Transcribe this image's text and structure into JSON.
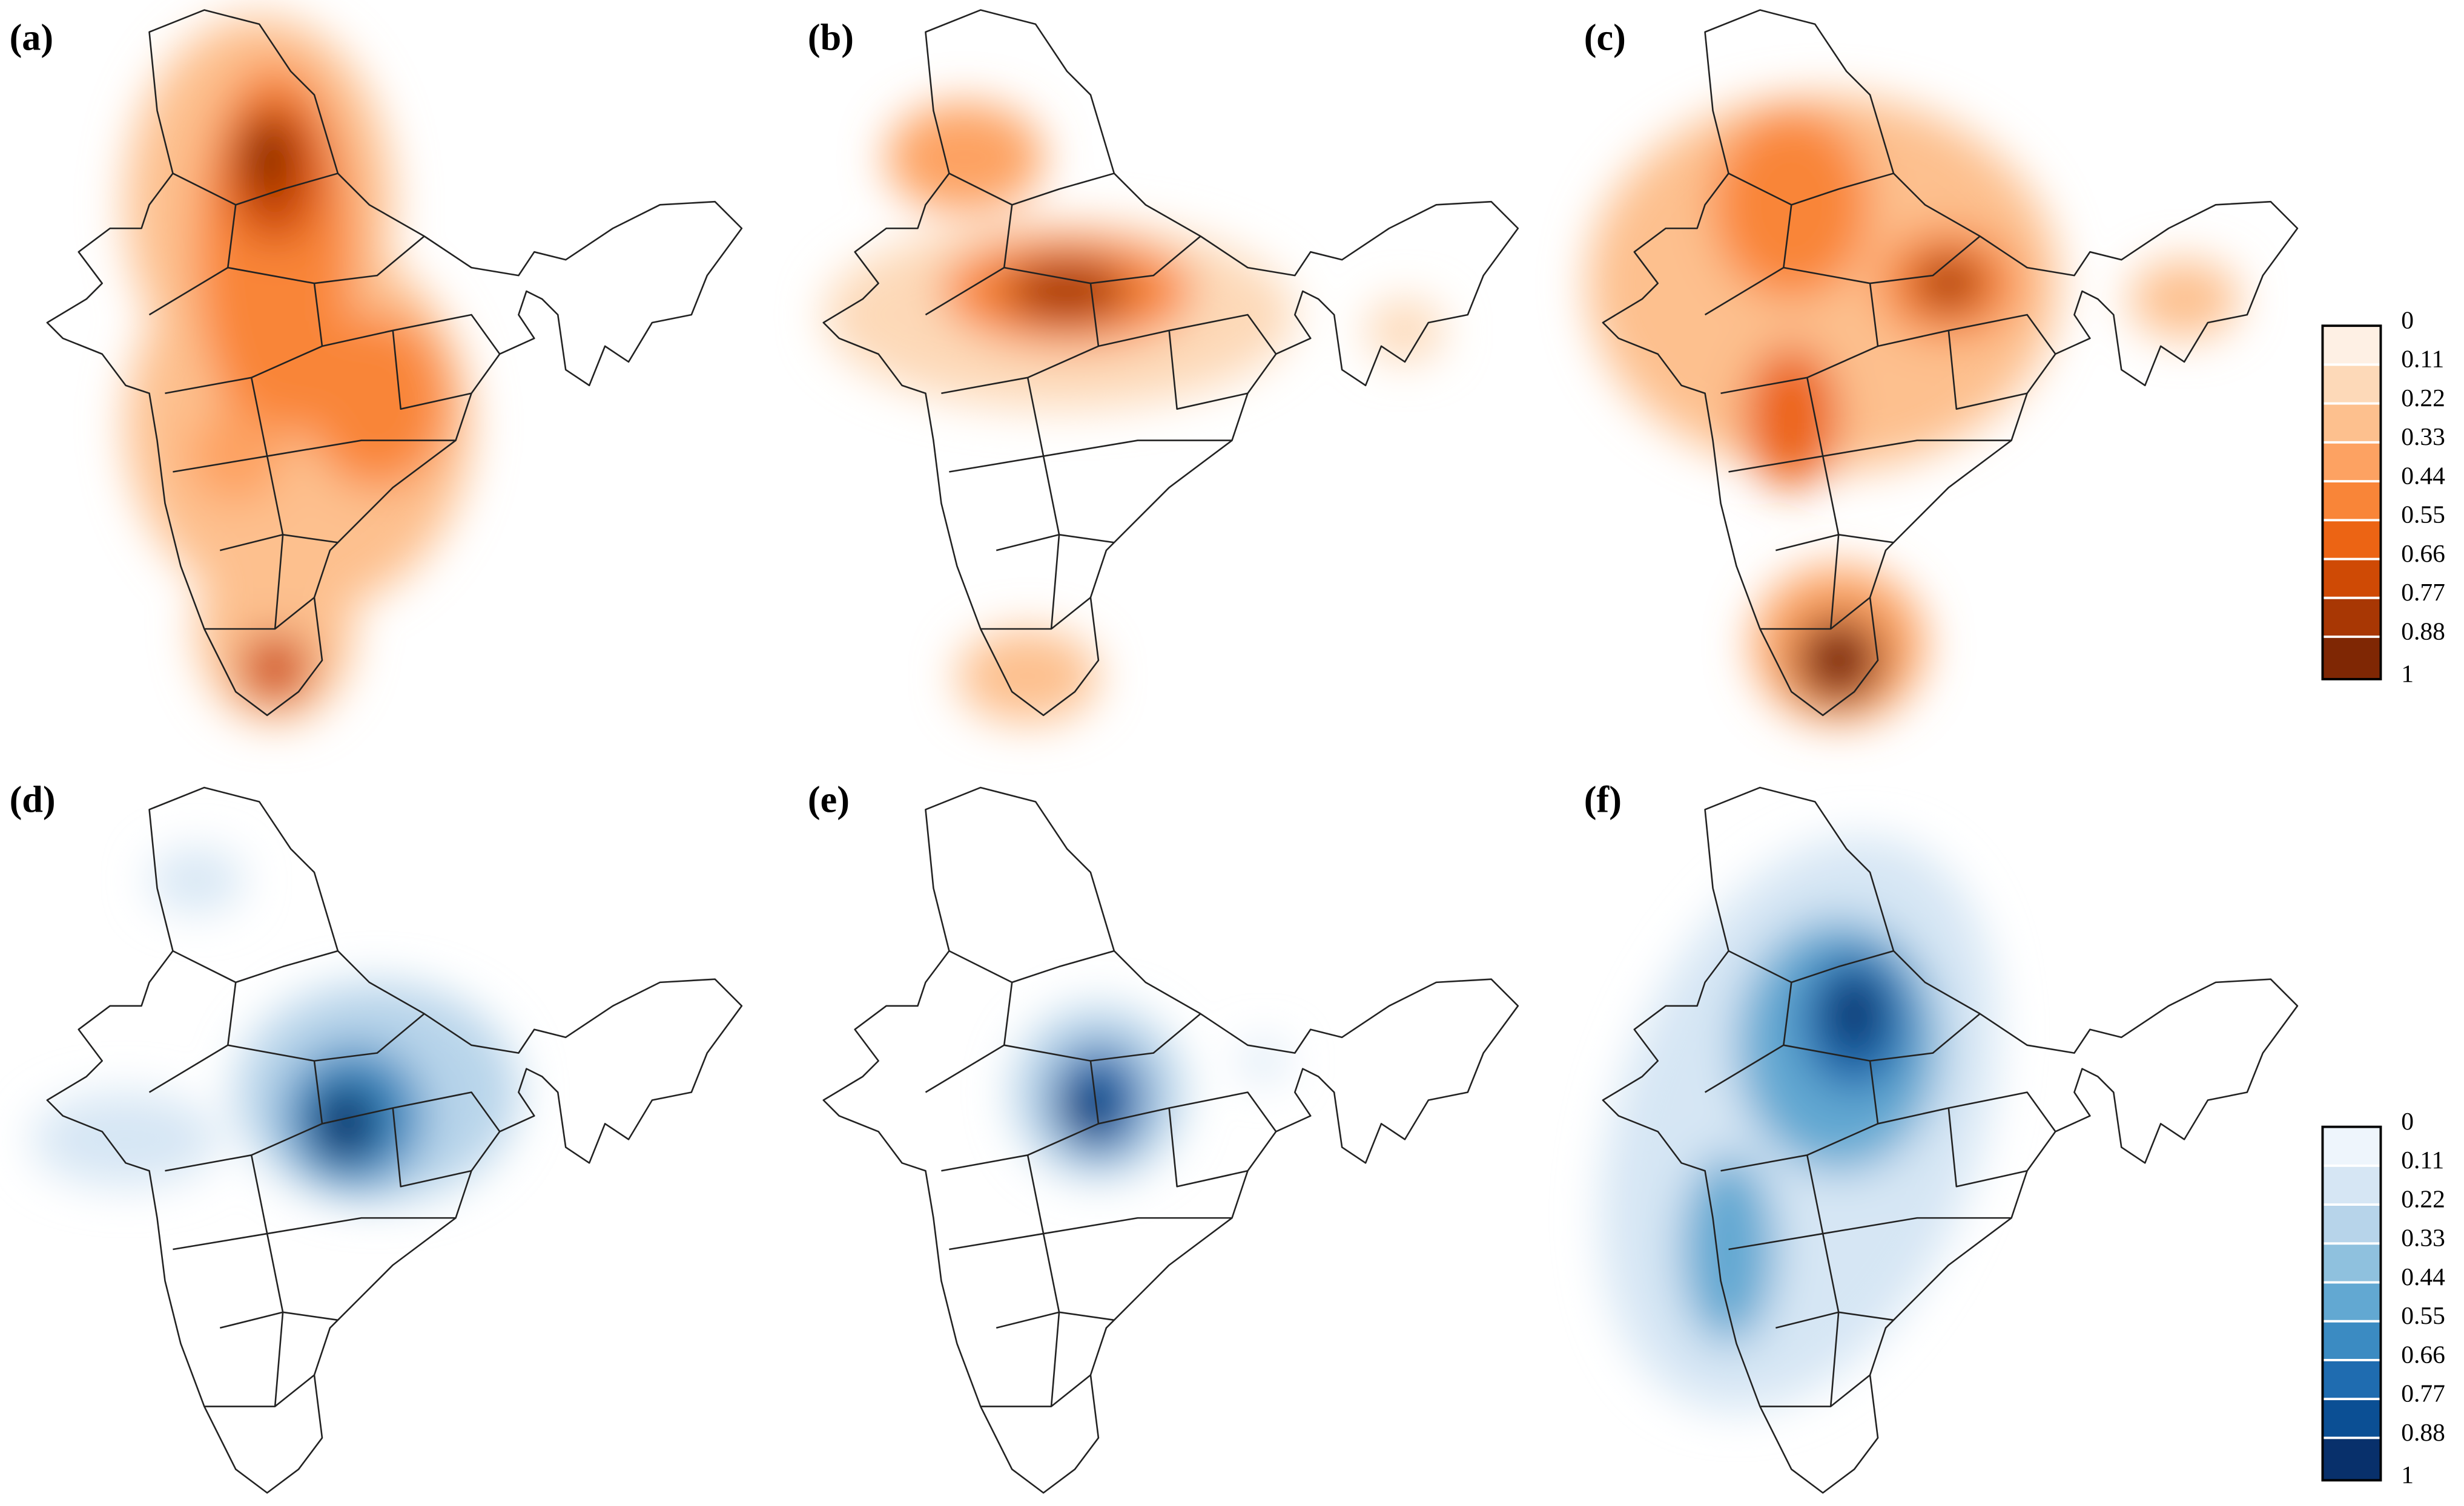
{
  "panels": [
    {
      "label": "(a)"
    },
    {
      "label": "(b)"
    },
    {
      "label": "(c)"
    },
    {
      "label": "(d)"
    },
    {
      "label": "(e)"
    },
    {
      "label": "(f)"
    }
  ],
  "colorbars": [
    {
      "ticks": [
        0,
        0.11,
        0.22,
        0.33,
        0.44,
        0.55,
        0.66,
        0.77,
        0.88,
        1
      ],
      "colors": [
        "#fef0e4",
        "#fdd9b8",
        "#fdc08e",
        "#fda262",
        "#f98538",
        "#ec6414",
        "#cf4a05",
        "#a83704",
        "#7f2704"
      ]
    },
    {
      "ticks": [
        0,
        0.11,
        0.22,
        0.33,
        0.44,
        0.55,
        0.66,
        0.77,
        0.88,
        1
      ],
      "colors": [
        "#eef5fc",
        "#d6e6f4",
        "#b7d4ea",
        "#8fc1de",
        "#62a8d2",
        "#3b8bc2",
        "#1f6cb0",
        "#0b4f94",
        "#08306b"
      ]
    }
  ]
}
